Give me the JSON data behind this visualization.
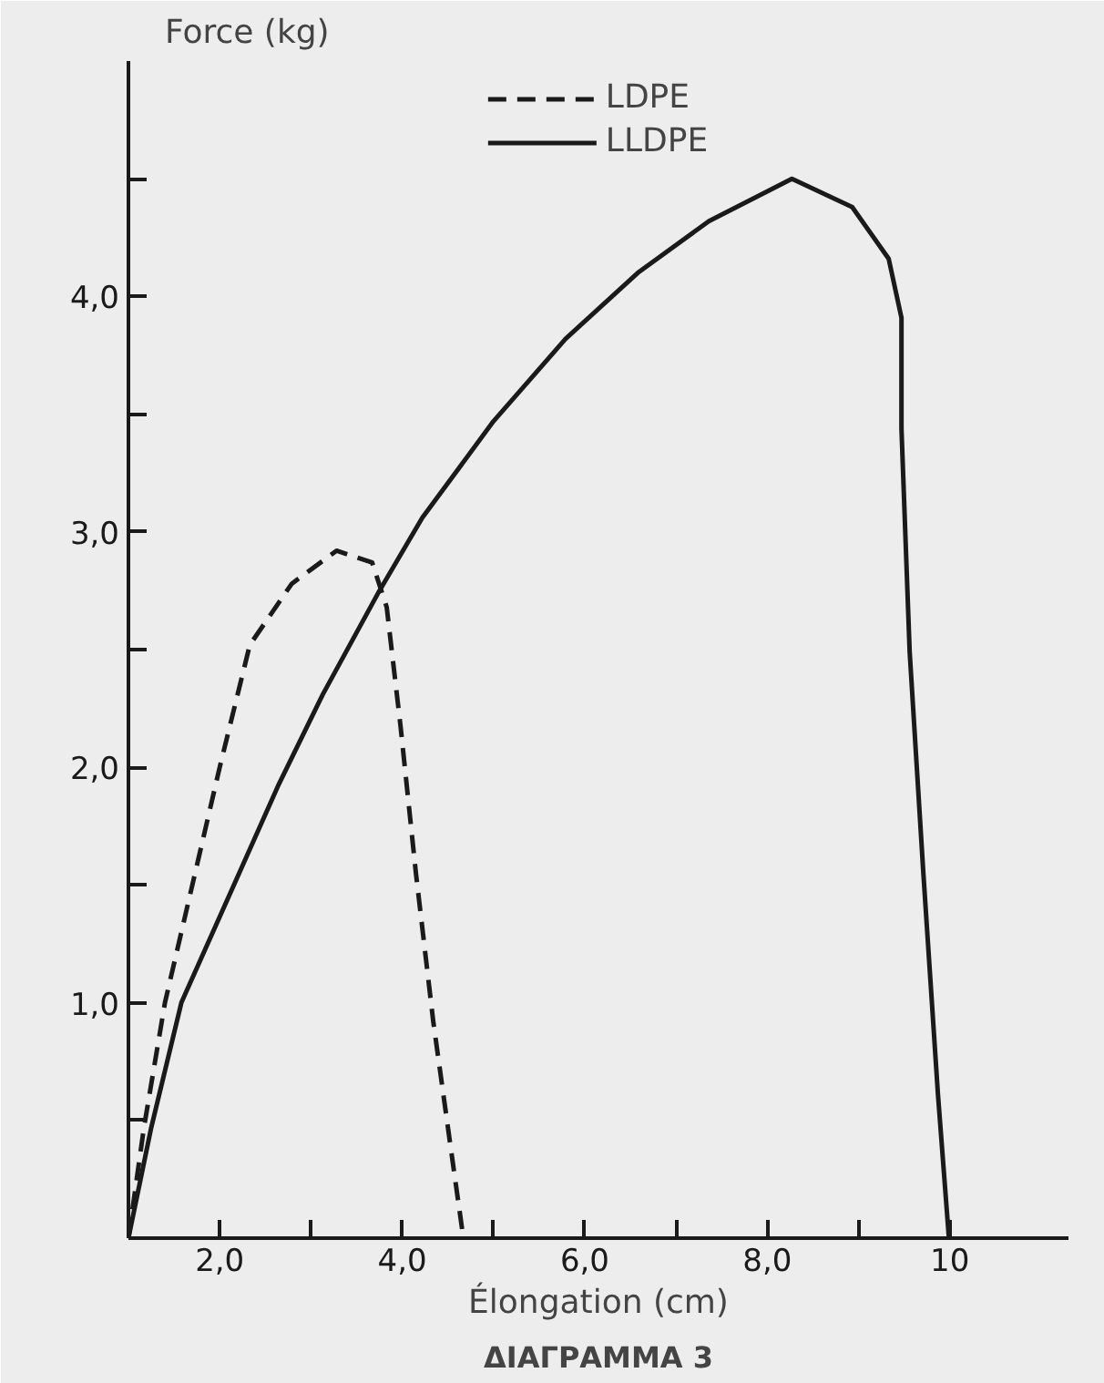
{
  "chart_data": {
    "type": "line",
    "xlabel": "Élongation (cm)",
    "ylabel": "Force (kg)",
    "annotations": [
      "ΔΙΑΓΡΑΜΜΑ 3"
    ],
    "xlim": [
      1.0,
      11.3
    ],
    "ylim": [
      0,
      5.0
    ],
    "xticks": [
      {
        "value": 2,
        "label": "2,0"
      },
      {
        "value": 3,
        "label": null
      },
      {
        "value": 4,
        "label": "4,0"
      },
      {
        "value": 5,
        "label": null
      },
      {
        "value": 6,
        "label": "6,0"
      },
      {
        "value": 7,
        "label": null
      },
      {
        "value": 8,
        "label": "8,0"
      },
      {
        "value": 9,
        "label": null
      },
      {
        "value": 10,
        "label": "10"
      }
    ],
    "yticks": [
      {
        "value": 0.5,
        "label": null
      },
      {
        "value": 1,
        "label": "1,0"
      },
      {
        "value": 1.5,
        "label": null
      },
      {
        "value": 2,
        "label": "2,0"
      },
      {
        "value": 2.5,
        "label": null
      },
      {
        "value": 3,
        "label": "3,0"
      },
      {
        "value": 3.5,
        "label": null
      },
      {
        "value": 4,
        "label": "4,0"
      },
      {
        "value": 4.5,
        "label": null
      }
    ],
    "grid": false,
    "legend": "top",
    "marker": "none",
    "series": [
      {
        "name": "LDPE",
        "color": "#1a1a1a",
        "line_style": "dashed",
        "x": [
          1.0,
          1.17,
          1.4,
          2.0,
          2.33,
          2.79,
          3.28,
          3.67,
          3.83,
          3.98,
          4.15,
          4.34,
          4.54,
          4.67
        ],
        "values": [
          0,
          0.47,
          1.0,
          2.0,
          2.52,
          2.78,
          2.92,
          2.87,
          2.68,
          2.18,
          1.55,
          0.92,
          0.36,
          0
        ]
      },
      {
        "name": "LLDPE",
        "color": "#1a1a1a",
        "line_style": "solid",
        "x": [
          1.0,
          1.25,
          1.58,
          2.65,
          3.13,
          3.75,
          4.22,
          5.0,
          5.79,
          6.58,
          7.36,
          8.27,
          8.93,
          9.33,
          9.47,
          9.47,
          9.56,
          9.71,
          9.87,
          9.99
        ],
        "values": [
          0,
          0.47,
          1.0,
          1.93,
          2.31,
          2.75,
          3.06,
          3.47,
          3.82,
          4.1,
          4.32,
          4.5,
          4.38,
          4.16,
          3.91,
          3.44,
          2.49,
          1.55,
          0.61,
          0
        ]
      }
    ]
  }
}
